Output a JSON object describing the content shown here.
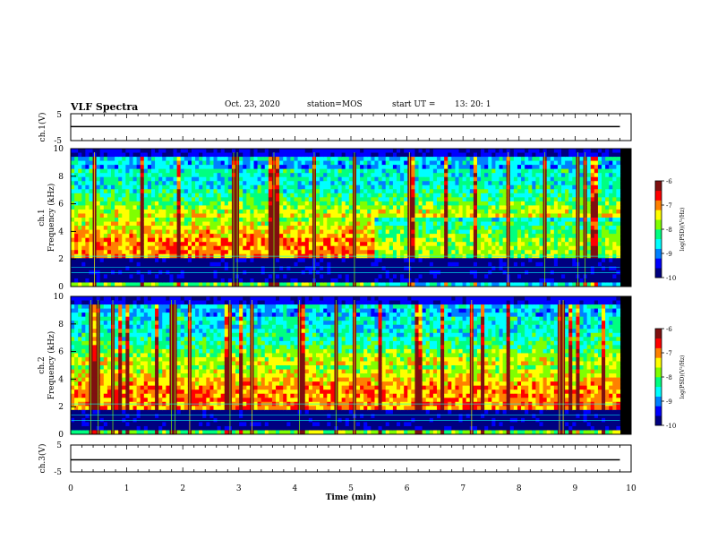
{
  "header": {
    "title": "VLF Spectra",
    "date": "Oct. 23, 2020",
    "station": "station=MOS",
    "start_label": "start UT =",
    "start_time": "13: 20: 1"
  },
  "colors": {
    "background": "#000000",
    "frame": "#000000",
    "colormap": [
      "#7f1010",
      "#ff0000",
      "#ff8000",
      "#ffff00",
      "#80ff00",
      "#00ff80",
      "#00ffff",
      "#0080ff",
      "#0000ff",
      "#000080"
    ]
  },
  "chart_data": [
    {
      "id": "ch1-voltage",
      "type": "line",
      "ylabel": "ch.1(V)",
      "ylim": [
        -5,
        5
      ],
      "yticks": [
        "5",
        "-5"
      ],
      "xlim": [
        0,
        10
      ],
      "series": [
        {
          "values": [
            [
              0,
              0.2
            ],
            [
              9.8,
              0.2
            ]
          ]
        }
      ]
    },
    {
      "id": "ch1-spectrogram",
      "type": "heatmap",
      "ylabel": "ch.1 Frequency (kHz)",
      "ylim": [
        0,
        10
      ],
      "yticks": [
        "0",
        "2",
        "4",
        "6",
        "8",
        "10"
      ],
      "xlim": [
        0,
        10
      ],
      "data_xlim": [
        0,
        9.8
      ],
      "colorbar": {
        "label": "log(PSD)(V²/Hz)",
        "range": [
          -10,
          -6
        ],
        "ticks": [
          "-6",
          "-7",
          "-8",
          "-9",
          "-10"
        ]
      }
    },
    {
      "id": "ch2-spectrogram",
      "type": "heatmap",
      "ylabel": "ch.2 Frequency (kHz)",
      "ylim": [
        0,
        10
      ],
      "yticks": [
        "0",
        "2",
        "4",
        "6",
        "8",
        "10"
      ],
      "xlim": [
        0,
        10
      ],
      "data_xlim": [
        0,
        9.8
      ],
      "colorbar": {
        "label": "log(PSD)(V²/Hz)",
        "range": [
          -10,
          -6
        ],
        "ticks": [
          "-6",
          "-7",
          "-8",
          "-9",
          "-10"
        ]
      }
    },
    {
      "id": "ch3-voltage",
      "type": "line",
      "ylabel": "ch.3(V)",
      "ylim": [
        -5,
        5
      ],
      "yticks": [
        "5",
        "-5"
      ],
      "xlim": [
        0,
        10
      ],
      "series": [
        {
          "values": [
            [
              0,
              -0.5
            ],
            [
              9.8,
              -0.5
            ]
          ]
        }
      ]
    }
  ],
  "xaxis": {
    "label": "Time (min)",
    "ticks": [
      "0",
      "1",
      "2",
      "3",
      "4",
      "5",
      "6",
      "7",
      "8",
      "9",
      "10"
    ]
  }
}
